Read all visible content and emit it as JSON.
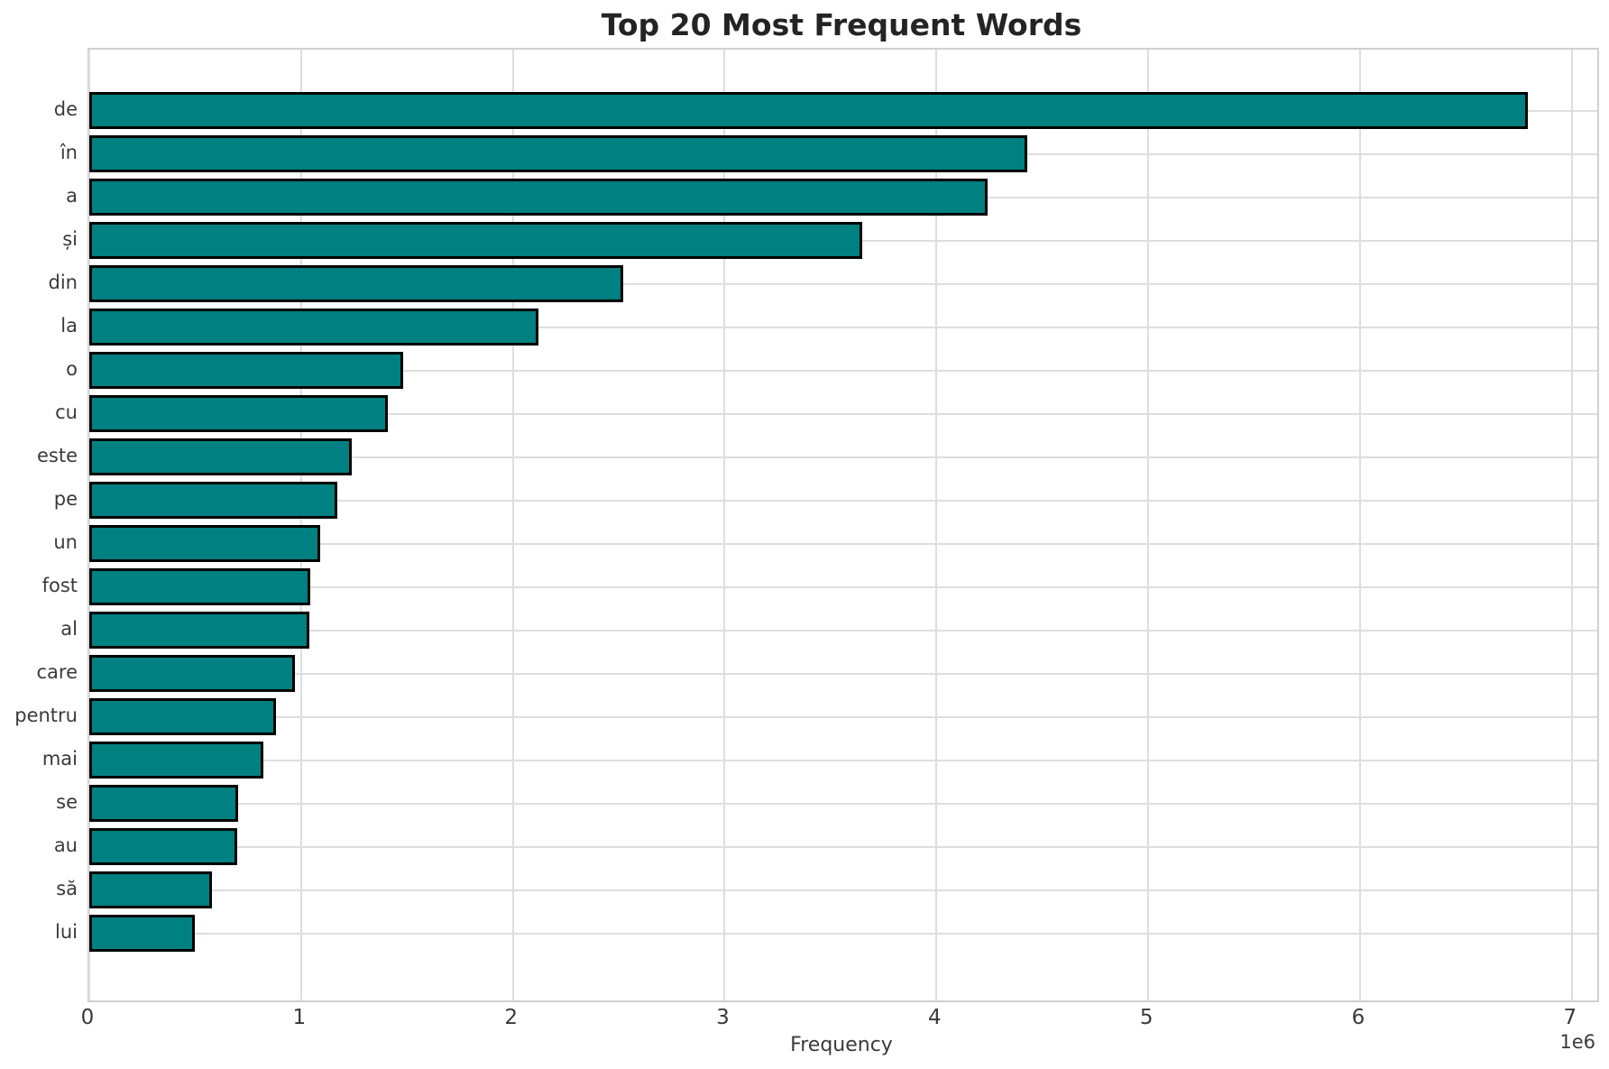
{
  "chart_data": {
    "type": "bar",
    "orientation": "horizontal",
    "title": "Top 20 Most Frequent Words",
    "xlabel": "Frequency",
    "ylabel": "",
    "offset_text": "1e6",
    "categories": [
      "de",
      "în",
      "a",
      "și",
      "din",
      "la",
      "o",
      "cu",
      "este",
      "pe",
      "un",
      "fost",
      "al",
      "care",
      "pentru",
      "mai",
      "se",
      "au",
      "să",
      "lui"
    ],
    "values": [
      6790000,
      4430000,
      4240000,
      3650000,
      2520000,
      2120000,
      1480000,
      1410000,
      1240000,
      1170000,
      1090000,
      1045000,
      1040000,
      970000,
      880000,
      820000,
      703000,
      699000,
      580000,
      500000
    ],
    "xlim": [
      0,
      7120000
    ],
    "xticks": [
      0,
      1,
      2,
      3,
      4,
      5,
      6,
      7
    ],
    "xtick_scale": 1000000,
    "grid": "both",
    "legend": "none",
    "bar_color": "#008080",
    "bar_edge_color": "#000000",
    "grid_color": "#dedede",
    "spine_color": "#d0d0d0",
    "text_color": "#3a3a3a",
    "title_color": "#242424",
    "background_color": "#ffffff"
  }
}
